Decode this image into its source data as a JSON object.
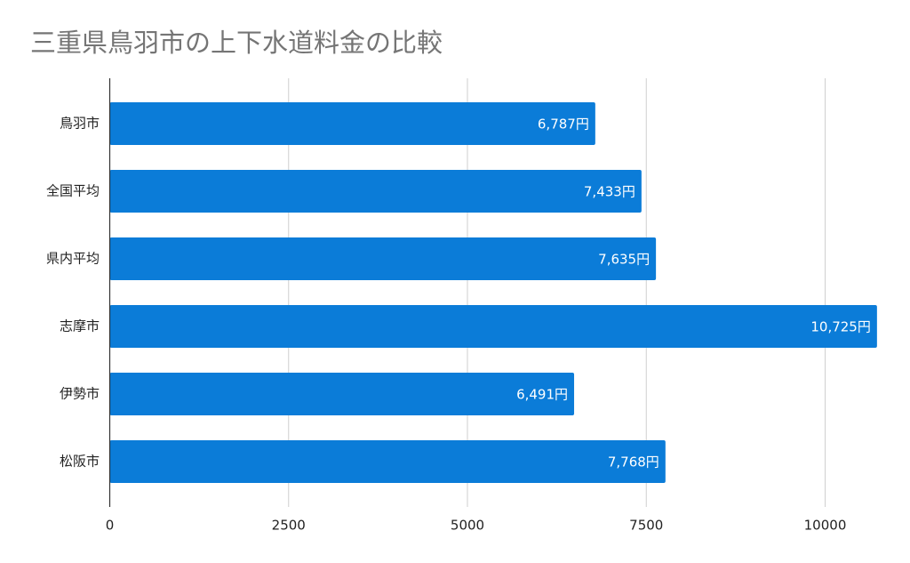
{
  "chart_data": {
    "type": "bar",
    "orientation": "horizontal",
    "title": "三重県鳥羽市の上下水道料金の比較",
    "categories": [
      "鳥羽市",
      "全国平均",
      "県内平均",
      "志摩市",
      "伊勢市",
      "松阪市"
    ],
    "values": [
      6787,
      7433,
      7635,
      10725,
      6491,
      7768
    ],
    "value_labels": [
      "6,787円",
      "7,433円",
      "7,635円",
      "10,725円",
      "6,491円",
      "7,768円"
    ],
    "color": "#0b7cd8",
    "xlim": [
      0,
      11000
    ],
    "xticks": [
      0,
      2500,
      5000,
      7500,
      10000
    ],
    "grid": true
  }
}
